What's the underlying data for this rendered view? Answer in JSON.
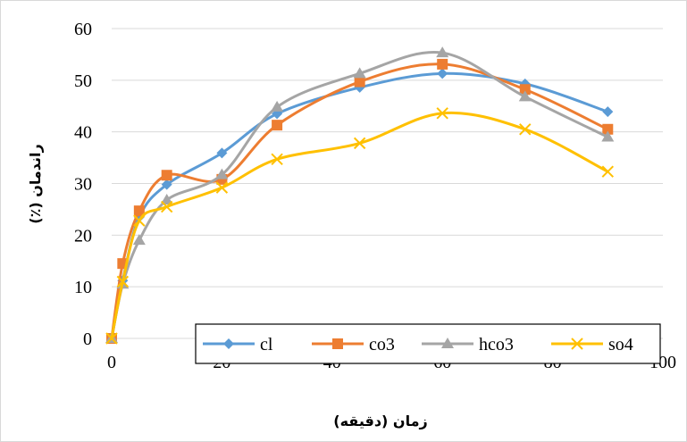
{
  "chart_data": {
    "type": "line",
    "smooth": true,
    "xlabel": "زمان (دقیقه)",
    "ylabel": "راندمان (٪)",
    "xlim": [
      0,
      100
    ],
    "ylim": [
      0,
      60
    ],
    "xticks": [
      0,
      20,
      40,
      60,
      80,
      100
    ],
    "yticks": [
      0,
      10,
      20,
      30,
      40,
      50,
      60
    ],
    "grid": "horizontal",
    "legend_position": "bottom-right, inside plot",
    "x": [
      0,
      2,
      5,
      10,
      20,
      30,
      45,
      60,
      75,
      90
    ],
    "series": [
      {
        "name": "cl",
        "color": "#5B9BD5",
        "marker": "diamond",
        "values": [
          0,
          11.2,
          23.5,
          29.8,
          35.9,
          43.5,
          48.6,
          51.3,
          49.3,
          43.9
        ]
      },
      {
        "name": "co3",
        "color": "#ED7D31",
        "marker": "square",
        "values": [
          0,
          14.5,
          24.7,
          31.6,
          30.8,
          41.3,
          49.7,
          53.1,
          48.2,
          40.5
        ]
      },
      {
        "name": "hco3",
        "color": "#A5A5A5",
        "marker": "triangle",
        "values": [
          0,
          10.5,
          19.0,
          26.8,
          31.7,
          44.8,
          51.3,
          55.3,
          46.8,
          39.0
        ]
      },
      {
        "name": "so4",
        "color": "#FFC000",
        "marker": "x",
        "values": [
          0,
          11.0,
          22.8,
          25.5,
          29.2,
          34.7,
          37.8,
          43.6,
          40.5,
          32.3
        ]
      }
    ]
  }
}
